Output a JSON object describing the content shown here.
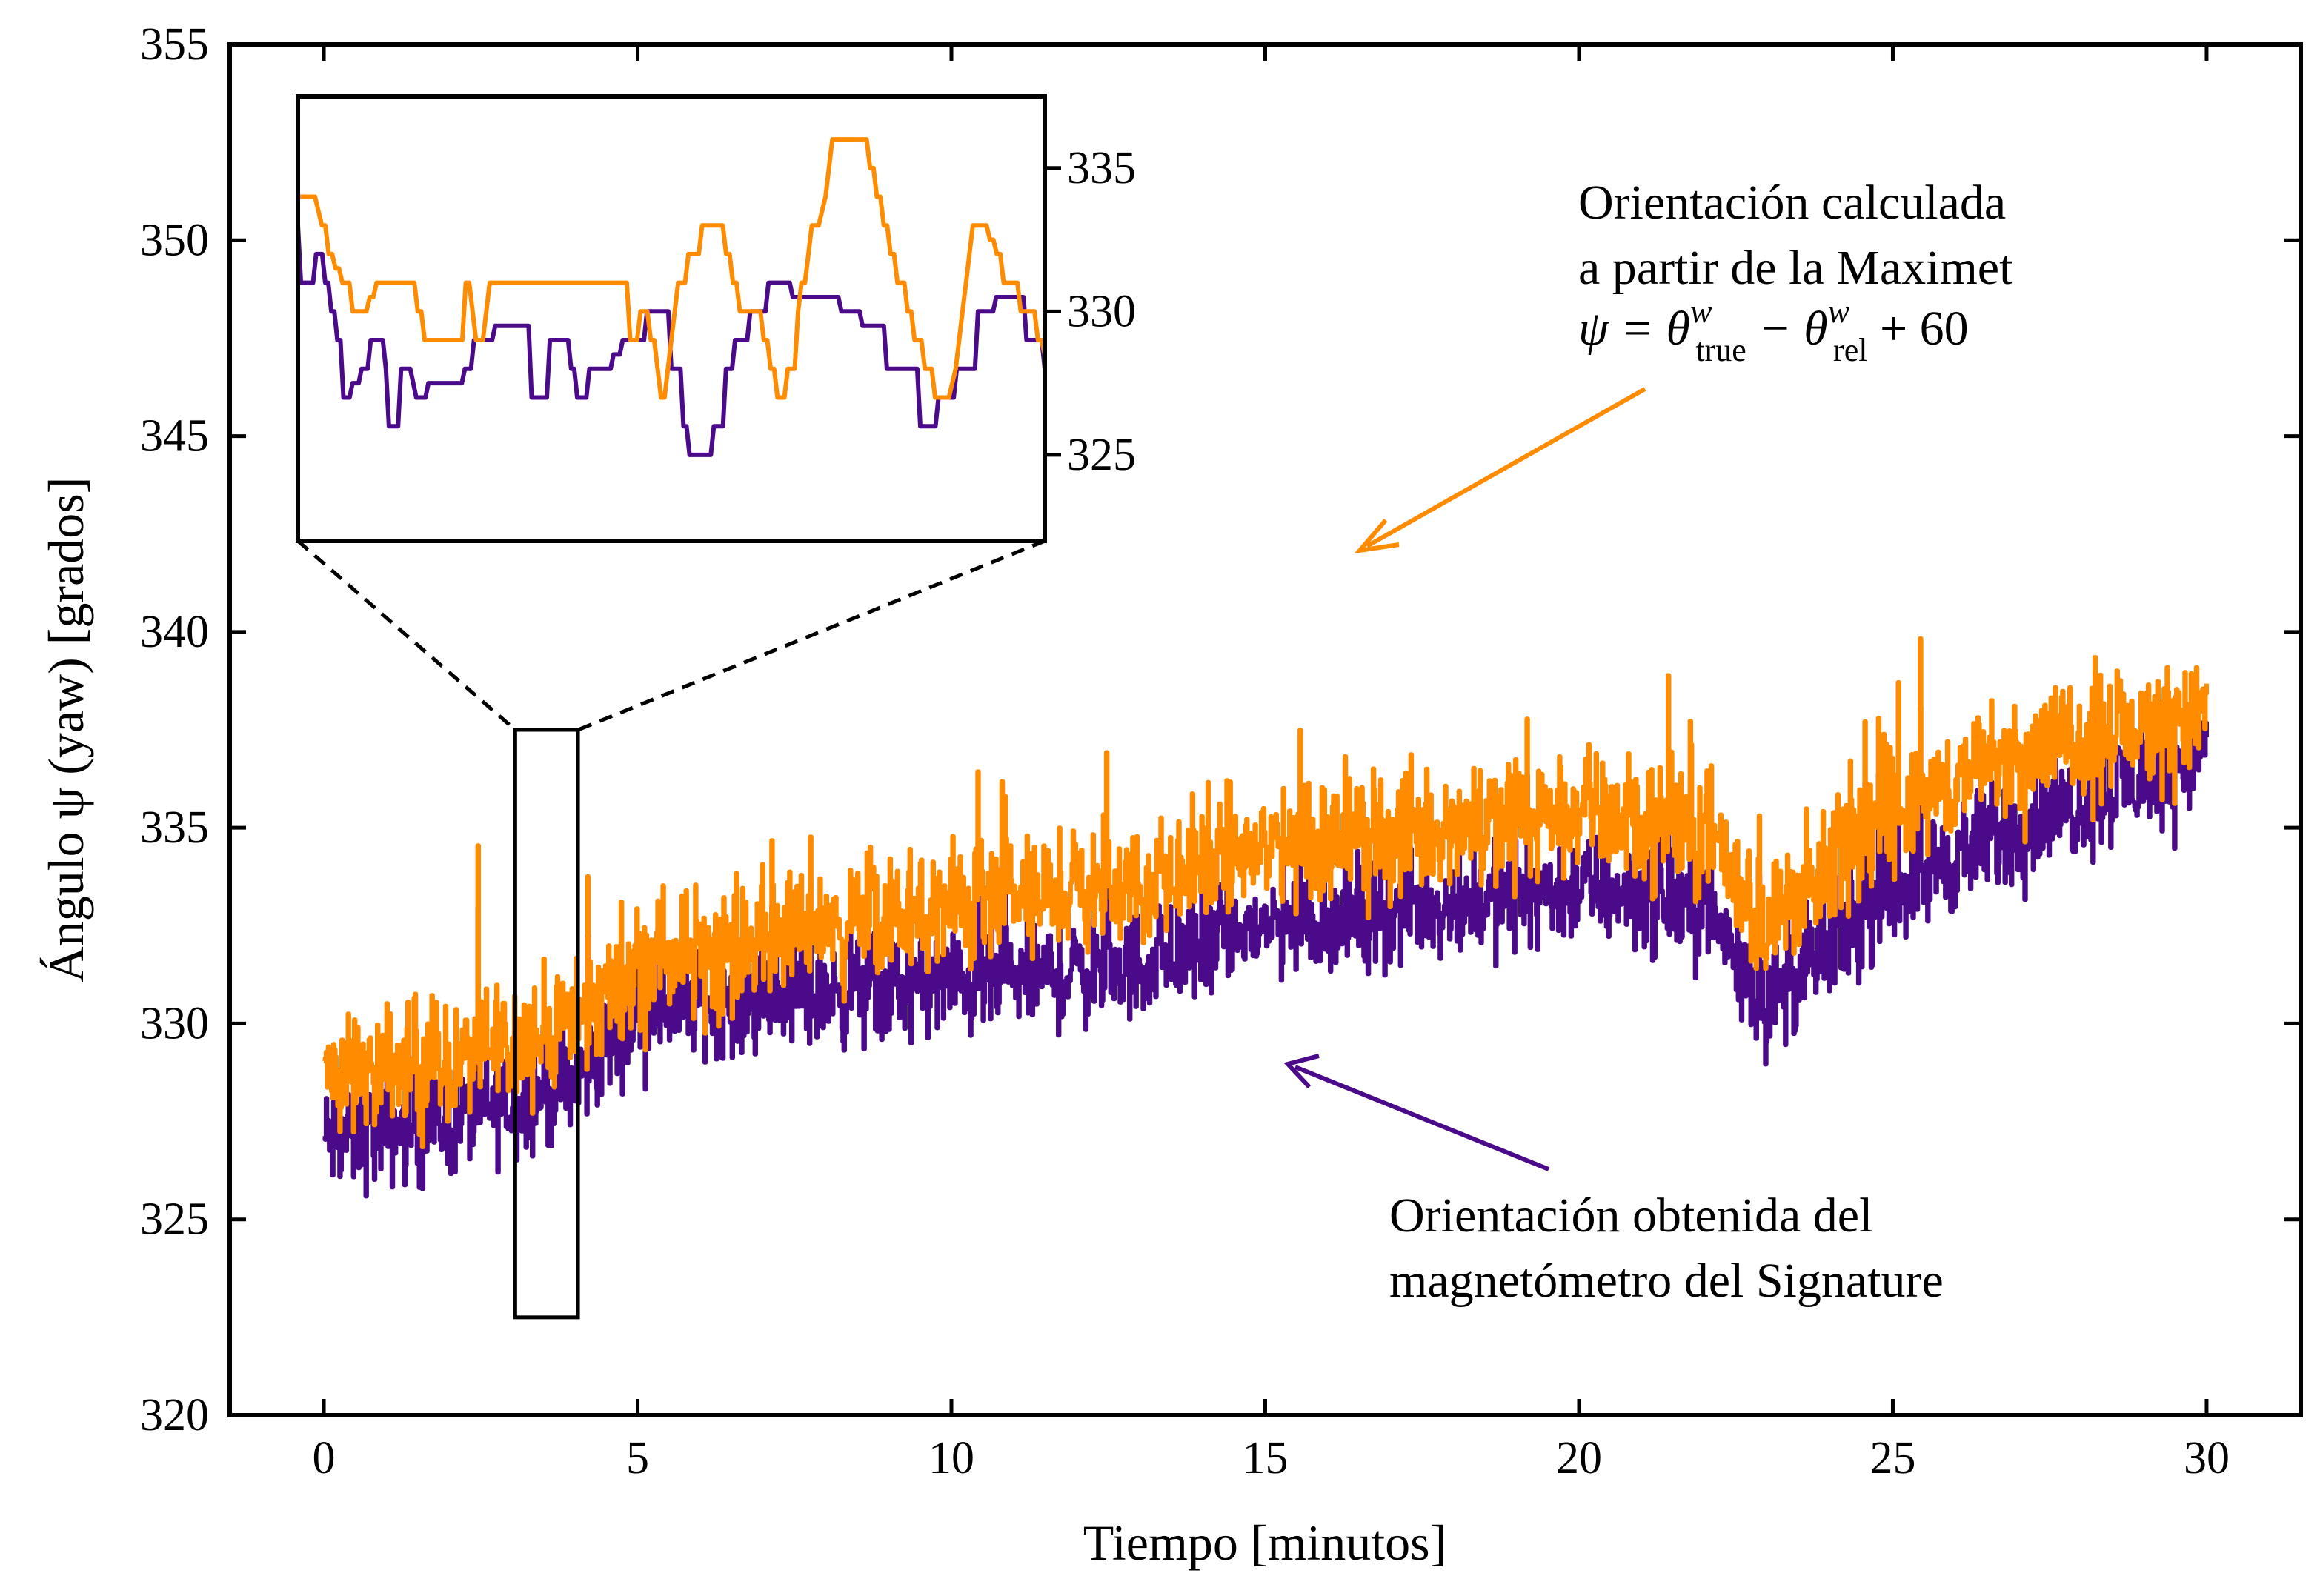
{
  "chart_data": [
    {
      "type": "line",
      "title": "",
      "xlabel": "Tiempo [minutos]",
      "ylabel": "Ángulo ψ (yaw) [grados]",
      "xlim": [
        -1.5,
        31.5
      ],
      "ylim": [
        320,
        355
      ],
      "xticks": [
        0,
        5,
        10,
        15,
        20,
        25,
        30
      ],
      "yticks": [
        320,
        325,
        330,
        335,
        340,
        345,
        350,
        355
      ],
      "grid": false,
      "series": [
        {
          "name": "",
          "color": "#4b0a8a",
          "trend": [
            [
              0,
              327
            ],
            [
              2,
              327.5
            ],
            [
              4,
              328.5
            ],
            [
              5,
              330.5
            ],
            [
              8,
              330.8
            ],
            [
              10,
              331
            ],
            [
              13,
              331.5
            ],
            [
              15,
              332.5
            ],
            [
              20,
              333.5
            ],
            [
              22,
              333
            ],
            [
              23,
              330.5
            ],
            [
              24,
              332
            ],
            [
              25,
              333.5
            ],
            [
              27,
              335
            ],
            [
              30,
              337
            ]
          ],
          "noise_amplitude": 3.0,
          "min": 323.5,
          "max": 342
        },
        {
          "name": "",
          "color": "#ff8c00",
          "trend": [
            [
              0,
              328.5
            ],
            [
              2,
              329
            ],
            [
              4,
              330
            ],
            [
              5,
              331.5
            ],
            [
              8,
              332.5
            ],
            [
              10,
              333
            ],
            [
              13,
              333.5
            ],
            [
              15,
              334.5
            ],
            [
              20,
              335.5
            ],
            [
              22,
              335
            ],
            [
              23,
              332.5
            ],
            [
              24,
              334
            ],
            [
              25,
              335.5
            ],
            [
              27,
              337
            ],
            [
              30,
              338
            ]
          ],
          "noise_amplitude": 3.0,
          "min": 325,
          "max": 345
        }
      ],
      "zoom_region": {
        "x": [
          3.05,
          4.05
        ],
        "y": [
          322.5,
          337.5
        ]
      }
    },
    {
      "type": "line",
      "title": "",
      "xlabel": "",
      "ylabel": "",
      "ylim": [
        322,
        337.5
      ],
      "yticks": [
        325,
        330,
        335
      ],
      "y_axis_side": "right",
      "series": [
        {
          "name": "",
          "color": "#4b0a8a",
          "values": [
            333,
            331,
            331,
            331,
            331,
            331,
            332,
            332,
            332,
            331,
            331,
            330,
            330,
            329,
            329,
            327,
            327,
            327,
            327.5,
            327.5,
            327.5,
            328,
            328,
            328,
            329,
            329,
            329,
            329,
            329,
            328,
            326,
            326,
            326,
            326,
            328,
            328,
            328,
            328,
            327.5,
            327,
            327,
            327,
            327,
            327.5,
            327.5,
            327.5,
            327.5,
            327.5,
            327.5,
            327.5,
            327.5,
            327.5,
            327.5,
            327.5,
            327.5,
            328,
            328,
            328,
            329,
            329,
            329,
            329,
            329,
            329,
            329,
            329.5,
            329.5,
            329.5,
            329.5,
            329.5,
            329.5,
            329.5,
            329.5,
            329.5,
            329.5,
            329.5,
            329.5,
            327,
            327,
            327,
            327,
            327,
            327,
            329,
            329,
            329,
            329,
            329,
            329,
            329,
            328,
            328,
            327,
            327,
            327,
            327,
            328,
            328,
            328,
            328,
            328,
            328,
            328,
            328,
            328.5,
            328.5,
            328.5,
            329,
            329,
            329,
            329,
            329,
            329,
            329,
            329,
            330,
            330,
            330,
            330,
            330,
            330,
            330,
            330,
            328,
            328,
            328,
            328,
            326,
            326,
            325,
            325,
            325,
            325,
            325,
            325,
            325,
            325,
            326,
            326,
            326,
            326,
            328,
            328,
            328,
            329,
            329,
            329,
            329,
            329,
            330,
            330,
            330,
            330,
            330,
            330,
            331,
            331,
            331,
            331,
            331,
            331,
            331,
            331,
            330.5,
            330.5,
            330.5,
            330.5,
            330.5,
            330.5,
            330.5,
            330.5,
            330.5,
            330.5,
            330.5,
            330.5,
            330.5,
            330.5,
            330.5,
            330.5,
            330,
            330,
            330,
            330,
            330,
            330,
            330,
            329.5,
            329.5,
            329.5,
            329.5,
            329.5,
            329.5,
            329.5,
            329.5,
            328,
            328,
            328,
            328,
            328,
            328,
            328,
            328,
            328,
            328,
            328,
            326,
            326,
            326,
            326,
            326,
            326,
            327,
            327,
            327,
            327,
            327,
            327,
            328,
            328,
            328,
            328,
            328,
            328,
            328,
            330,
            330,
            330,
            330,
            330,
            330,
            330.5,
            330.5,
            330.5,
            330.5,
            330.5,
            330.5,
            330.5,
            330.5,
            330.5,
            330.5,
            329,
            329,
            329,
            329,
            329,
            329,
            328
          ]
        },
        {
          "name": "",
          "color": "#ff8c00",
          "values": [
            334,
            334,
            334,
            334,
            334,
            334,
            333.5,
            333,
            333,
            332,
            332,
            331.5,
            331.5,
            331,
            331,
            331,
            330,
            330,
            330,
            330,
            330,
            330.5,
            330.5,
            331,
            331,
            331,
            331,
            331,
            331,
            331,
            331,
            331,
            331,
            331,
            331,
            330,
            330,
            329,
            329,
            329,
            329,
            329,
            329,
            329,
            329,
            329,
            329,
            329,
            329,
            331,
            331,
            330,
            329,
            329,
            329,
            330,
            331,
            331,
            331,
            331,
            331,
            331,
            331,
            331,
            331,
            331,
            331,
            331,
            331,
            331,
            331,
            331,
            331,
            331,
            331,
            331,
            331,
            331,
            331,
            331,
            331,
            331,
            331,
            331,
            331,
            331,
            331,
            331,
            331,
            331,
            331,
            331,
            331,
            331,
            331,
            331,
            331,
            329,
            329,
            329,
            330,
            330,
            330,
            329,
            329,
            328,
            327,
            327,
            328,
            329,
            330,
            331,
            331,
            331,
            332,
            332,
            332,
            332,
            333,
            333,
            333,
            333,
            333,
            333,
            333,
            332,
            332,
            331,
            331,
            330,
            330,
            330,
            330,
            330,
            330,
            330,
            329,
            329,
            328,
            328,
            327,
            327,
            327,
            328,
            328,
            328,
            330,
            331,
            331,
            332,
            333,
            333,
            333,
            333.5,
            334,
            335,
            336,
            336,
            336,
            336,
            336,
            336,
            336,
            336,
            336,
            336,
            336,
            335,
            335,
            334,
            334,
            333,
            333,
            332,
            332,
            331,
            331,
            331,
            330,
            330,
            329,
            329,
            329,
            328,
            328,
            328,
            327,
            327,
            327,
            327,
            327,
            327.5,
            328,
            329,
            330,
            331,
            332,
            333,
            333,
            333,
            333,
            333,
            332.5,
            332.5,
            332,
            332,
            331,
            331,
            331,
            331,
            331,
            330,
            330,
            330,
            330,
            330,
            329,
            329,
            328.5
          ]
        }
      ],
      "annotations": [],
      "_unused": ""
    }
  ],
  "annotations": {
    "maximet": {
      "line1": "Orientación calculada",
      "line2": "a partir de la Maximet",
      "formula": "ψ = θ",
      "w1": "w",
      "sub1": "true",
      "minus": " − θ",
      "w2": "w",
      "sub2": "rel",
      "plus": " + 60",
      "color": "#ff8c00"
    },
    "signature": {
      "line1": "Orientación obtenida del",
      "line2": "magnetómetro del Signature",
      "color": "#4b0a8a"
    }
  }
}
